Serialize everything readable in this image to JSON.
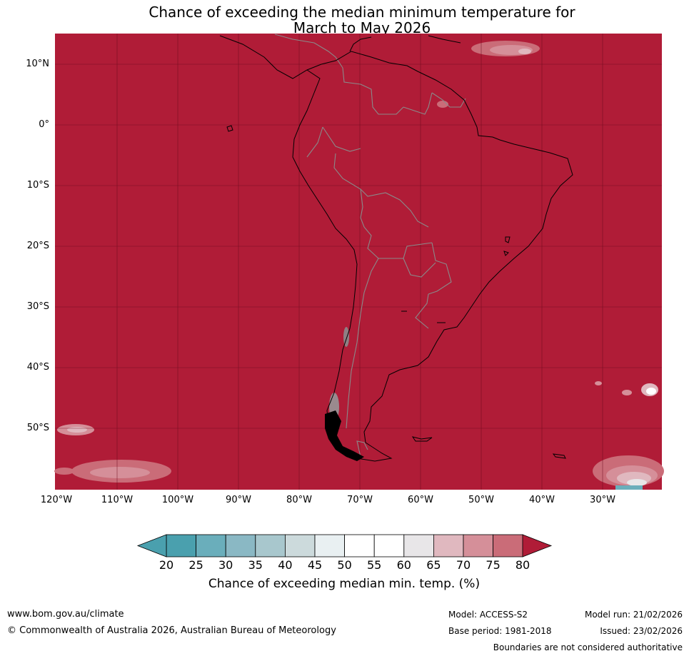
{
  "title": {
    "line1": "Chance of exceeding the median minimum temperature for",
    "line2": "March to May 2026"
  },
  "map": {
    "region": "South America",
    "background_color": "#b01c37",
    "lat_labels": [
      "10°N",
      "0°",
      "10°S",
      "20°S",
      "30°S",
      "40°S",
      "50°S"
    ],
    "lon_labels": [
      "120°W",
      "110°W",
      "100°W",
      "90°W",
      "80°W",
      "70°W",
      "60°W",
      "50°W",
      "40°W",
      "30°W"
    ]
  },
  "colorbar": {
    "ticks": [
      "20",
      "25",
      "30",
      "35",
      "40",
      "45",
      "50",
      "55",
      "60",
      "65",
      "70",
      "75",
      "80"
    ],
    "colors": [
      "#4aa0ae",
      "#6aaebb",
      "#8ab8c4",
      "#a8c7cd",
      "#ccdadc",
      "#e9f0f2",
      "#ffffff",
      "#ffffff",
      "#e8e6e8",
      "#e0b8bf",
      "#d58f99",
      "#ca6c78",
      "#bf4555"
    ],
    "low_extend_color": "#4aa0ae",
    "high_extend_color": "#b01c37",
    "label": "Chance of exceeding median min. temp. (%)"
  },
  "footer": {
    "website": "www.bom.gov.au/climate",
    "copyright": "© Commonwealth of Australia 2026, Australian Bureau of Meteorology",
    "model": "Model: ACCESS-S2",
    "model_run": "Model run: 21/02/2026",
    "base_period": "Base period: 1981-2018",
    "issued": "Issued: 23/02/2026",
    "disclaimer": "Boundaries are not considered authoritative"
  }
}
